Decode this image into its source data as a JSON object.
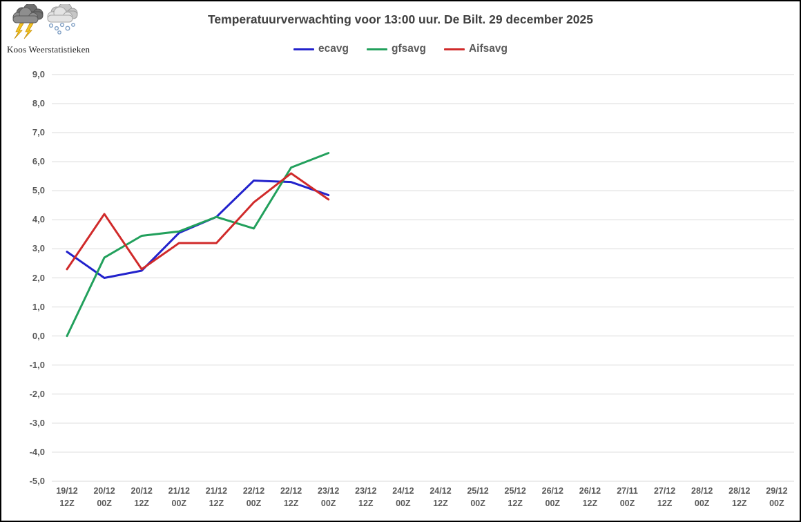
{
  "logo": {
    "text": "Koos Weerstatistieken",
    "icons": [
      "storm-cloud-lightning-icon",
      "snow-cloud-icon"
    ]
  },
  "colors": {
    "background": "#FFFFFF",
    "frame": "#000000",
    "grid": "#D9D9D9",
    "axis_text": "#595959",
    "title_text": "#404040",
    "legend_text": "#595959"
  },
  "chart_data": {
    "type": "line",
    "title": "Temperatuurverwachting voor 13:00 uur. De Bilt. 29 december 2025",
    "xlabel": "",
    "ylabel": "",
    "ylim": [
      -5,
      9
    ],
    "ytick_step": 1,
    "ytick_decimal_separator": ",",
    "grid": true,
    "legend_position": "top-center",
    "categories": [
      "19/12 12Z",
      "20/12 00Z",
      "20/12 12Z",
      "21/12 00Z",
      "21/12 12Z",
      "22/12 00Z",
      "22/12 12Z",
      "23/12 00Z",
      "23/12 12Z",
      "24/12 00Z",
      "24/12 12Z",
      "25/12 00Z",
      "25/12 12Z",
      "26/12 00Z",
      "26/12 12Z",
      "27/11 00Z",
      "27/12 12Z",
      "28/12 00Z",
      "28/12 12Z",
      "29/12 00Z"
    ],
    "series": [
      {
        "name": "ecavg",
        "color": "#2222CC",
        "values": [
          2.9,
          2.0,
          2.25,
          3.55,
          4.1,
          5.35,
          5.3,
          4.85
        ]
      },
      {
        "name": "gfsavg",
        "color": "#22A05C",
        "values": [
          0.0,
          2.7,
          3.45,
          3.6,
          4.1,
          3.7,
          5.8,
          6.3
        ]
      },
      {
        "name": "Aifsavg",
        "color": "#D02A2A",
        "values": [
          2.3,
          4.2,
          2.3,
          3.2,
          3.2,
          4.6,
          5.6,
          4.7
        ]
      }
    ]
  }
}
